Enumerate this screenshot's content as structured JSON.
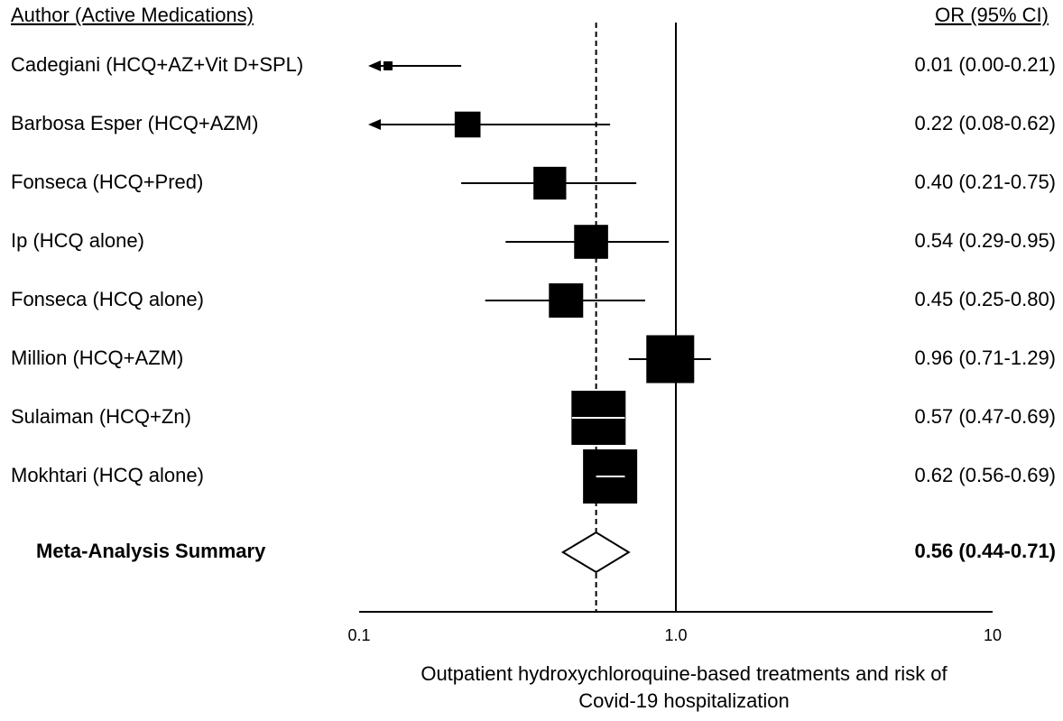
{
  "chart_data": {
    "type": "forest",
    "header_left": "Author (Active Medications)",
    "header_right": "OR (95% CI)",
    "categories": [
      "Cadegiani (HCQ+AZ+Vit D+SPL)",
      "Barbosa Esper (HCQ+AZM)",
      "Fonseca (HCQ+Pred)",
      "Ip (HCQ alone)",
      "Fonseca (HCQ alone)",
      "Million (HCQ+AZM)",
      "Sulaiman (HCQ+Zn)",
      "Mokhtari (HCQ alone)"
    ],
    "values": [
      0.01,
      0.22,
      0.4,
      0.54,
      0.45,
      0.96,
      0.57,
      0.62
    ],
    "lower": [
      0.0,
      0.08,
      0.21,
      0.29,
      0.25,
      0.71,
      0.47,
      0.56
    ],
    "upper": [
      0.21,
      0.62,
      0.75,
      0.95,
      0.8,
      1.29,
      0.69,
      0.69
    ],
    "value_labels": [
      "0.01 (0.00-0.21)",
      "0.22 (0.08-0.62)",
      "0.40 (0.21-0.75)",
      "0.54 (0.29-0.95)",
      "0.45 (0.25-0.80)",
      "0.96 (0.71-1.29)",
      "0.57 (0.47-0.69)",
      "0.62 (0.56-0.69)"
    ],
    "summary": {
      "label": "Meta-Analysis Summary",
      "value": 0.56,
      "lower": 0.44,
      "upper": 0.71,
      "value_label": "0.56 (0.44-0.71)"
    },
    "xscale": "log",
    "xlim": [
      0.1,
      10
    ],
    "xticks": [
      0.1,
      {
        "value": 1,
        "label": "1.0"
      },
      10
    ],
    "reference": 1,
    "xlabel": [
      "Outpatient hydroxychloroquine-based treatments and risk of",
      "Covid-19 hospitalization"
    ]
  }
}
